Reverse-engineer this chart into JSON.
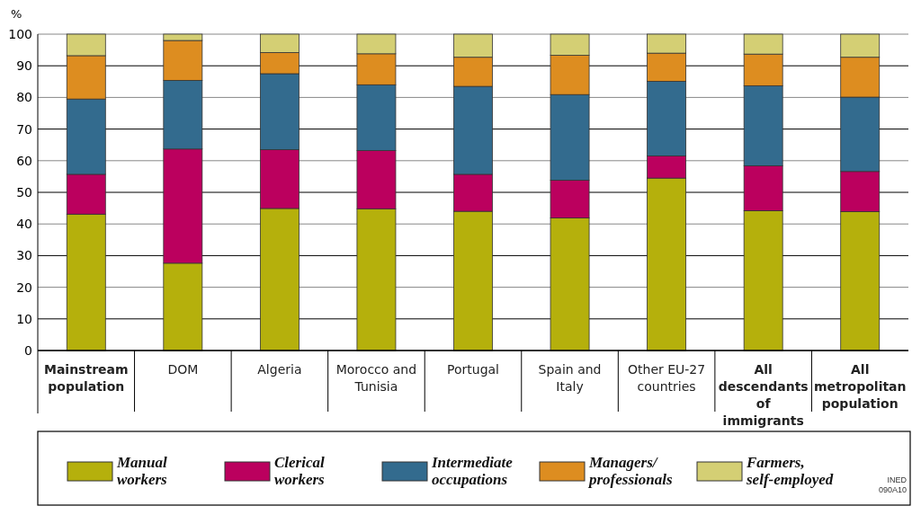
{
  "chart_data": {
    "type": "bar",
    "stacked": true,
    "ylabel": "%",
    "categories": [
      "Mainstream population",
      "DOM",
      "Algeria",
      "Morocco and Tunisia",
      "Portugal",
      "Spain and Italy",
      "Other EU-27 countries",
      "All descendants of immigrants",
      "All metropolitan population"
    ],
    "series": [
      {
        "name": "Manual workers",
        "color": "#b5b00c",
        "values": [
          43.1,
          27.6,
          44.9,
          44.8,
          44.0,
          41.9,
          54.5,
          44.2,
          43.9
        ]
      },
      {
        "name": "Clerical workers",
        "color": "#bb005e",
        "values": [
          12.6,
          36.1,
          18.6,
          18.4,
          11.7,
          11.9,
          7.0,
          14.2,
          12.7
        ]
      },
      {
        "name": "Intermediate occupations",
        "color": "#336b8e",
        "values": [
          23.8,
          21.7,
          24.0,
          20.8,
          27.8,
          27.1,
          23.6,
          25.3,
          23.5
        ]
      },
      {
        "name": "Managers/ professionals",
        "color": "#dd8d20",
        "values": [
          13.7,
          12.6,
          6.7,
          9.8,
          9.2,
          12.4,
          8.9,
          10.0,
          12.6
        ]
      },
      {
        "name": "Farmers, self-employed",
        "color": "#d4cf74",
        "values": [
          6.8,
          2.0,
          5.8,
          6.2,
          7.3,
          6.7,
          6.0,
          6.3,
          7.3
        ]
      }
    ],
    "ylim": [
      0,
      100
    ],
    "yticks": [
      0,
      10,
      20,
      30,
      40,
      50,
      60,
      70,
      80,
      90,
      100
    ],
    "grid": "y",
    "legend": "bottom",
    "annotations": [
      "INED 090A10"
    ]
  }
}
